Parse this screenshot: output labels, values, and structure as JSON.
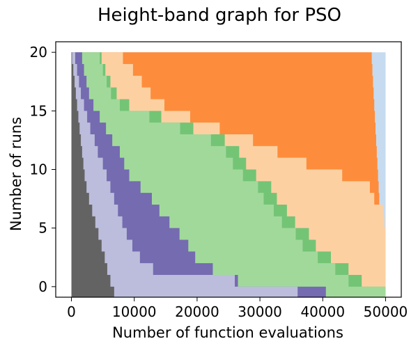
{
  "chart_data": {
    "type": "area",
    "title": "Height-band graph for PSO",
    "xlabel": "Number of function evaluations",
    "ylabel": "Number of runs",
    "xlim": [
      -2500,
      52500
    ],
    "ylim": [
      -0.9,
      20.9
    ],
    "xticks": [
      0,
      10000,
      20000,
      30000,
      40000,
      50000
    ],
    "yticks": [
      0,
      5,
      10,
      15,
      20
    ],
    "grid": false,
    "legend": "none",
    "band_colors": [
      "#636363",
      "#bcbddc",
      "#756bb1",
      "#a1d99b",
      "#74c476",
      "#fdd0a2",
      "#fd8d3c",
      "#c6dbef"
    ],
    "bands": [
      {
        "color": "#636363",
        "x": [
          100,
          300,
          500,
          700,
          900,
          1100,
          1300,
          1500,
          1700,
          1900,
          2100,
          2400,
          2800,
          3300,
          3800,
          4300,
          4800,
          5300,
          5700,
          6200,
          6800
        ],
        "y_start": 20
      },
      {
        "color": "#bcbddc",
        "x": [
          600,
          900,
          1200,
          1500,
          2000,
          2500,
          3000,
          3700,
          4200,
          5000,
          5600,
          6200,
          6800,
          7400,
          8100,
          8800,
          9700,
          10900,
          13000,
          26000,
          36000
        ],
        "y_start": 20
      },
      {
        "color": "#756bb1",
        "x": [
          1700,
          2000,
          2400,
          2800,
          3500,
          4500,
          5500,
          6500,
          7700,
          8400,
          9200,
          11000,
          12800,
          14000,
          15600,
          17200,
          18600,
          19700,
          22500,
          26500,
          40500
        ],
        "y_start": 20
      },
      {
        "color": "#a1d99b",
        "x": [
          4500,
          5000,
          5600,
          6300,
          7700,
          12400,
          17300,
          22200,
          24600,
          25700,
          27300,
          29700,
          30600,
          32200,
          33500,
          35700,
          36800,
          39200,
          42000,
          44100,
          50000
        ],
        "y_start": 20
      },
      {
        "color": "#74c476",
        "x": [
          4800,
          5400,
          6200,
          7200,
          9200,
          14300,
          19400,
          24400,
          26700,
          27800,
          29400,
          31800,
          32700,
          34300,
          35600,
          37800,
          38900,
          41300,
          44100,
          46200,
          50000
        ],
        "y_start": 20
      },
      {
        "color": "#fdd0a2",
        "x": [
          8200,
          9800,
          11200,
          12600,
          14800,
          18900,
          23600,
          28900,
          32800,
          37400,
          43100,
          47500,
          48200,
          49600,
          49800,
          50000,
          50000,
          50000,
          50000,
          50000,
          50000
        ],
        "y_start": 20
      },
      {
        "color": "#fd8d3c",
        "x": [
          47800,
          47900,
          48000,
          48100,
          48200,
          48300,
          48400,
          48500,
          48600,
          48700,
          48800,
          48900,
          49000,
          49100,
          49200,
          49300,
          49400,
          49500,
          49600,
          49700,
          50000
        ],
        "y_start": 20
      },
      {
        "color": "#c6dbef",
        "x": [
          50000
        ],
        "y_start": 20
      }
    ]
  }
}
